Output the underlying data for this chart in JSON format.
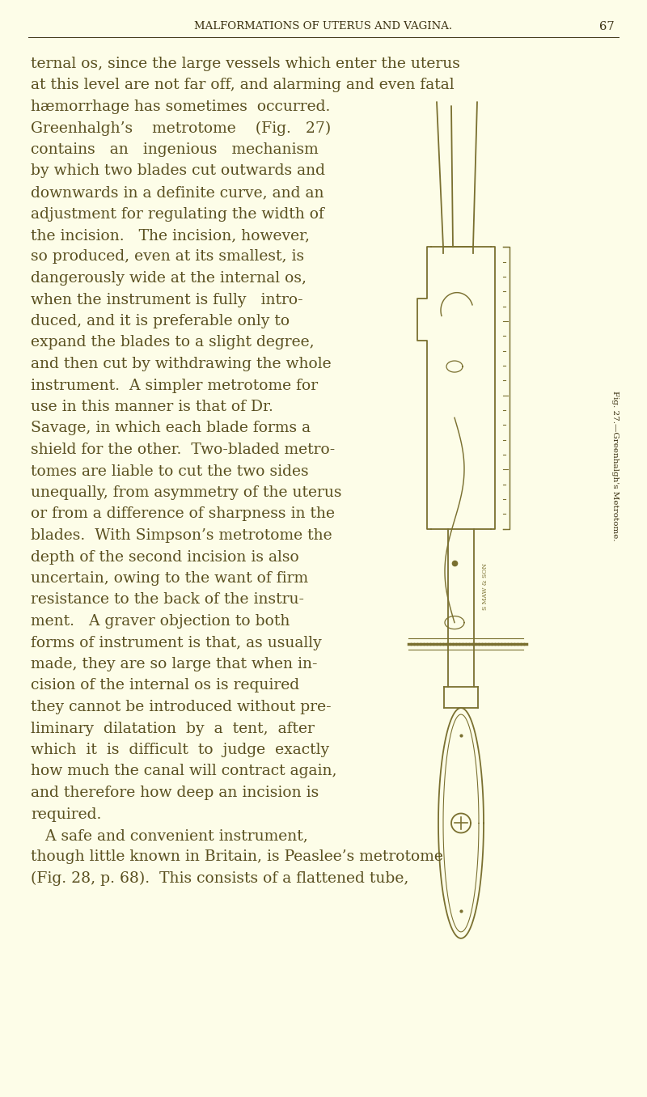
{
  "page_bg": "#fdfde8",
  "text_color": "#5a5020",
  "dark_color": "#3a3010",
  "instrument_color": "#7a7030",
  "header_text": "MALFORMATIONS OF UTERUS AND VAGINA.",
  "page_number": "67",
  "header_fontsize": 9.5,
  "body_fontsize": 13.5,
  "fig_caption": "Fig. 27.—Greenhalgh's Metrotome.",
  "full_lines": [
    "ternal os, since the large vessels which enter the uterus",
    "at this level are not far off, and alarming and even fatal",
    "hæmorrhage has sometimes  occurred."
  ],
  "col_lines": [
    "Greenhalgh’s    metrotome    (Fig.   27)",
    "contains   an   ingenious   mechanism",
    "by which two blades cut outwards and",
    "downwards in a definite curve, and an",
    "adjustment for regulating the width of",
    "the incision.   The incision, however,",
    "so produced, even at its smallest, is",
    "dangerously wide at the internal os,",
    "when the instrument is fully   intro-",
    "duced, and it is preferable only to",
    "expand the blades to a slight degree,",
    "and then cut by withdrawing the whole",
    "instrument.  A simpler metrotome for",
    "use in this manner is that of Dr.",
    "Savage, in which each blade forms a",
    "shield for the other.  Two-bladed metro-",
    "tomes are liable to cut the two sides",
    "unequally, from asymmetry of the uterus",
    "or from a difference of sharpness in the",
    "blades.  With Simpson’s metrotome the",
    "depth of the second incision is also",
    "uncertain, owing to the want of firm",
    "resistance to the back of the instru-",
    "ment.   A graver objection to both",
    "forms of instrument is that, as usually",
    "made, they are so large that when in-",
    "cision of the internal os is required",
    "they cannot be introduced without pre-",
    "liminary  dilatation  by  a  tent,  after",
    "which  it  is  difficult  to  judge  exactly",
    "how much the canal will contract again,",
    "and therefore how deep an incision is",
    "required."
  ],
  "bottom_lines": [
    "   A safe and convenient instrument,",
    "though little known in Britain, is Peaslee’s metrotome",
    "(Fig. 28, p. 68).  This consists of a flattened tube,"
  ]
}
